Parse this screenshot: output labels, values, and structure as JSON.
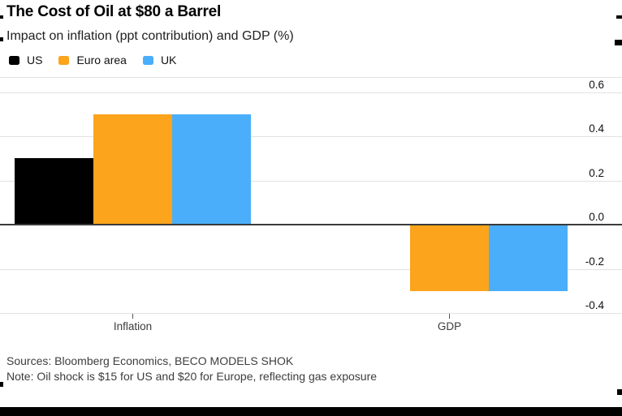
{
  "chart_data": {
    "type": "bar",
    "title": "The Cost of Oil at $80 a Barrel",
    "subtitle": "Impact on inflation (ppt contribution) and GDP (%)",
    "categories": [
      "Inflation",
      "GDP"
    ],
    "series": [
      {
        "name": "US",
        "color": "#000000",
        "values": [
          0.3,
          0.0
        ]
      },
      {
        "name": "Euro area",
        "color": "#FCA41B",
        "values": [
          0.5,
          -0.3
        ]
      },
      {
        "name": "UK",
        "color": "#4AAEFA",
        "values": [
          0.5,
          -0.3
        ]
      }
    ],
    "ylim": [
      -0.4,
      0.6
    ],
    "yticks": [
      0.6,
      0.4,
      0.2,
      0.0,
      -0.2,
      -0.4
    ],
    "ytick_format_decimals": 1,
    "grid": true,
    "legend_position": "top-left",
    "xlabel": "",
    "ylabel": ""
  },
  "footer": {
    "sources": "Sources: Bloomberg Economics, BECO MODELS SHOK",
    "note": "Note: Oil shock is $15 for US and $20 for Europe, reflecting gas exposure"
  },
  "colors": {
    "us": "#000000",
    "euro_area": "#FCA41B",
    "uk": "#4AAEFA",
    "gridline": "#E2E2E2",
    "zero_line": "#3A3A3A",
    "bottom_bar": "#000000"
  }
}
